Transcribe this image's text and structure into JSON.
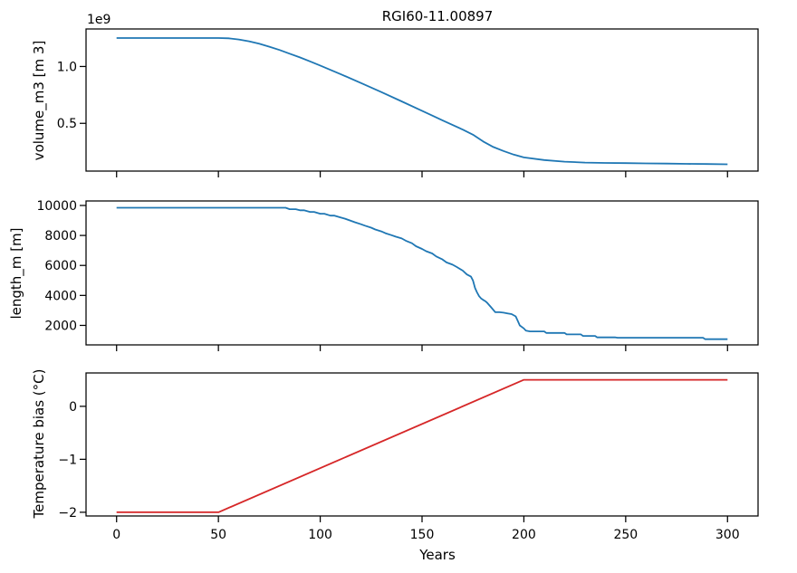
{
  "chart_data": [
    {
      "id": "volume",
      "type": "line",
      "title": "RGI60-11.00897",
      "xlabel": "",
      "ylabel": "volume_m3 [m 3]",
      "y_offset_label": "1e9",
      "y_scale_factor": 1000000000,
      "xlim": [
        -15,
        315
      ],
      "ylim": [
        80000000,
        1330000000
      ],
      "xticks": [
        0,
        50,
        100,
        150,
        200,
        250,
        300
      ],
      "xtick_labels_shown": false,
      "yticks": [
        0.5,
        1.0
      ],
      "ytick_labels": [
        "0.5",
        "1.0"
      ],
      "grid": false,
      "color": "#1f77b4",
      "series": [
        {
          "x": [
            0,
            10,
            20,
            30,
            40,
            50,
            55,
            60,
            65,
            70,
            75,
            80,
            85,
            90,
            95,
            100,
            110,
            120,
            130,
            140,
            150,
            160,
            170,
            175,
            180,
            185,
            190,
            195,
            200,
            210,
            220,
            230,
            240,
            250,
            260,
            270,
            280,
            290,
            300
          ],
          "y": [
            1250000000,
            1250000000,
            1250000000,
            1250000000,
            1250000000,
            1250000000,
            1248000000,
            1238000000,
            1222000000,
            1200000000,
            1174000000,
            1145000000,
            1113000000,
            1080000000,
            1045000000,
            1008000000,
            933000000,
            855000000,
            775000000,
            693000000,
            610000000,
            527000000,
            445000000,
            400000000,
            340000000,
            292000000,
            257000000,
            225000000,
            200000000,
            177000000,
            163000000,
            155000000,
            152000000,
            150000000,
            148000000,
            146000000,
            144000000,
            142000000,
            140000000
          ]
        }
      ]
    },
    {
      "id": "length",
      "type": "line",
      "title": "",
      "xlabel": "",
      "ylabel": "length_m [m]",
      "xlim": [
        -15,
        315
      ],
      "ylim": [
        700,
        10300
      ],
      "xticks": [
        0,
        50,
        100,
        150,
        200,
        250,
        300
      ],
      "xtick_labels_shown": false,
      "yticks": [
        2000,
        4000,
        6000,
        8000,
        10000
      ],
      "ytick_labels": [
        "2000",
        "4000",
        "6000",
        "8000",
        "10000"
      ],
      "grid": false,
      "color": "#1f77b4",
      "series": [
        {
          "x": [
            0,
            83,
            85,
            88,
            90,
            92,
            95,
            97,
            100,
            102,
            105,
            107,
            110,
            112,
            115,
            117,
            120,
            122,
            125,
            127,
            130,
            132,
            135,
            137,
            140,
            142,
            145,
            147,
            150,
            152,
            155,
            157,
            160,
            162,
            165,
            167,
            170,
            172,
            174,
            175,
            176,
            177,
            178,
            179,
            180,
            181,
            182,
            184,
            186,
            188,
            190,
            192,
            194,
            196,
            197,
            198,
            200,
            201,
            203,
            210,
            211,
            220,
            221,
            228,
            229,
            235,
            236,
            245,
            246,
            288,
            289,
            300
          ],
          "y": [
            9850,
            9850,
            9750,
            9750,
            9680,
            9680,
            9570,
            9570,
            9450,
            9450,
            9320,
            9320,
            9200,
            9120,
            8980,
            8880,
            8750,
            8650,
            8520,
            8400,
            8270,
            8150,
            8020,
            7920,
            7800,
            7650,
            7480,
            7280,
            7100,
            6950,
            6800,
            6600,
            6400,
            6200,
            6050,
            5900,
            5650,
            5400,
            5250,
            5000,
            4500,
            4200,
            3950,
            3800,
            3700,
            3620,
            3500,
            3200,
            2880,
            2880,
            2850,
            2800,
            2750,
            2600,
            2300,
            2000,
            1800,
            1650,
            1600,
            1600,
            1500,
            1500,
            1400,
            1400,
            1300,
            1300,
            1200,
            1200,
            1180,
            1180,
            1080,
            1080
          ]
        }
      ]
    },
    {
      "id": "temperature",
      "type": "line",
      "title": "",
      "xlabel": "Years",
      "ylabel": "Temperature bias (°C)",
      "xlim": [
        -15,
        315
      ],
      "ylim": [
        -2.07,
        0.63
      ],
      "xticks": [
        0,
        50,
        100,
        150,
        200,
        250,
        300
      ],
      "xtick_labels": [
        "0",
        "50",
        "100",
        "150",
        "200",
        "250",
        "300"
      ],
      "xtick_labels_shown": true,
      "yticks": [
        -2,
        -1,
        0
      ],
      "ytick_labels": [
        "−2",
        "−1",
        "0"
      ],
      "grid": false,
      "color": "#d62728",
      "series": [
        {
          "x": [
            0,
            50,
            200,
            300
          ],
          "y": [
            -2,
            -2,
            0.5,
            0.5
          ]
        }
      ]
    }
  ]
}
